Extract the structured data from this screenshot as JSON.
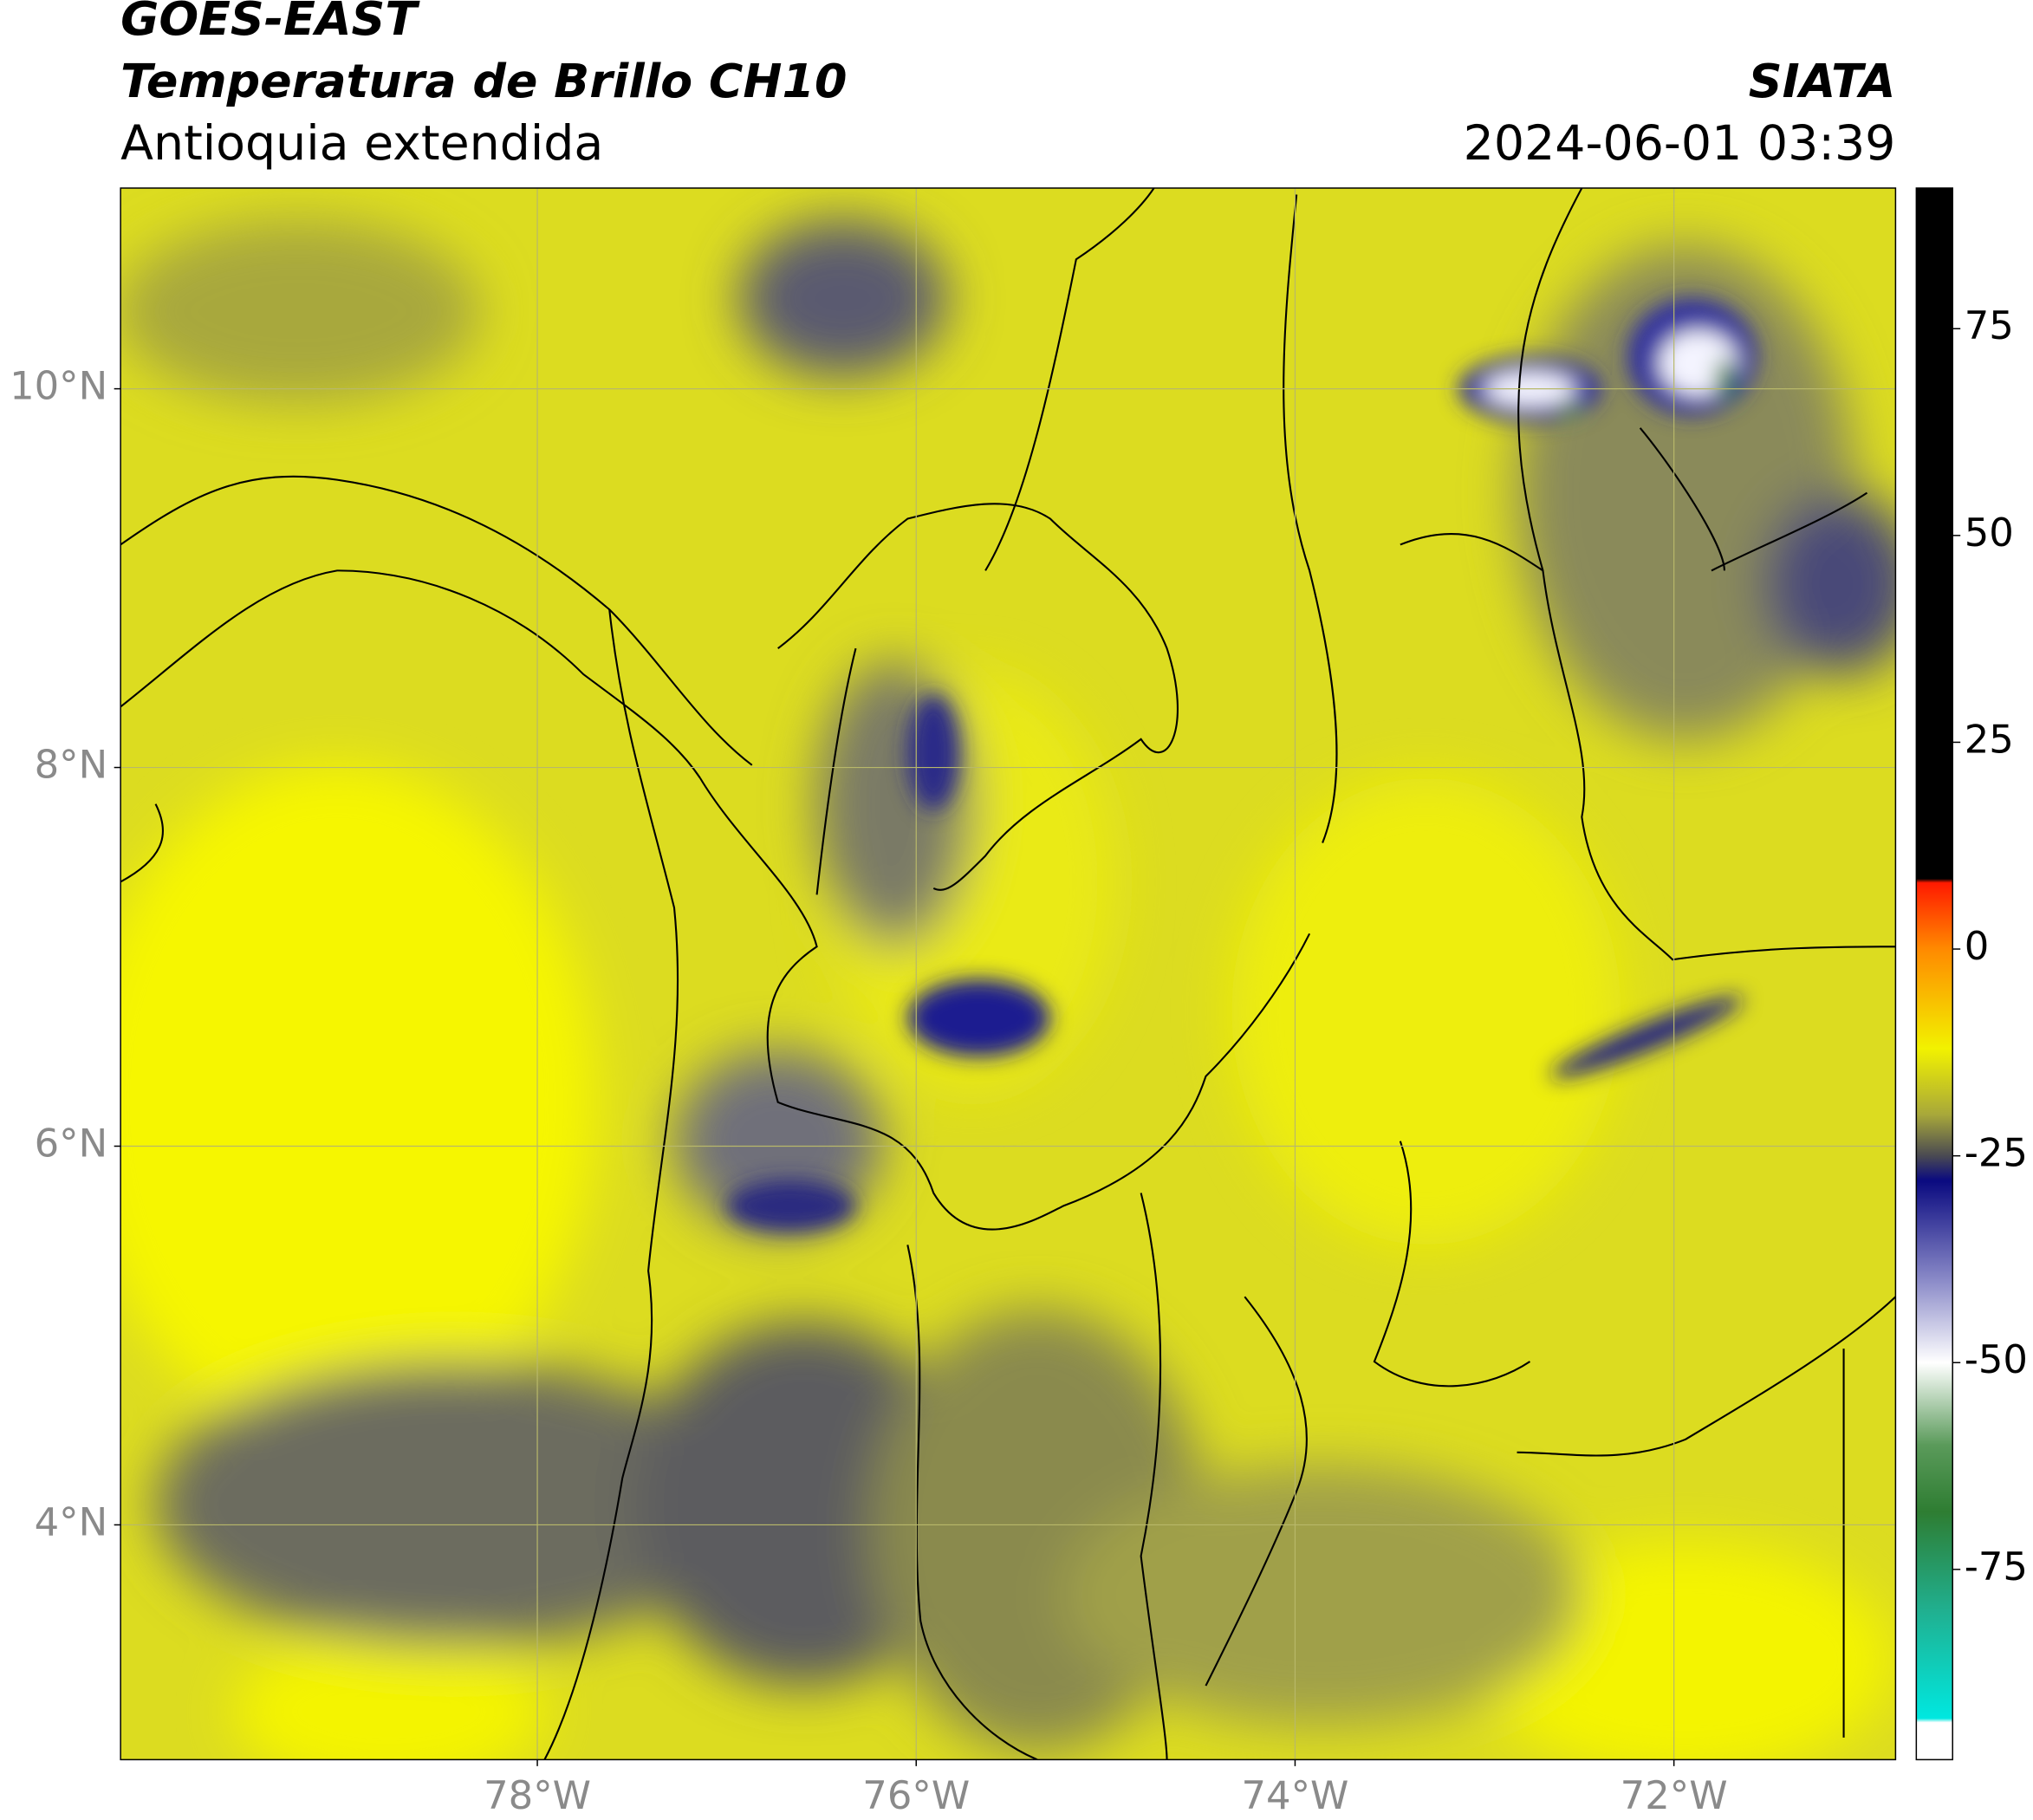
{
  "chart_data": {
    "type": "map",
    "title": "GOES-EAST",
    "subtitle": "Temperatura de Brillo CH10",
    "region": "Antioquia extendida",
    "source": "SIATA",
    "datetime": "2024-06-01 03:39",
    "xlim": [
      -80.2,
      -70.83
    ],
    "ylim": [
      2.76,
      11.06
    ],
    "xticks": [
      {
        "value": -78,
        "label": "78°W"
      },
      {
        "value": -76,
        "label": "76°W"
      },
      {
        "value": -74,
        "label": "74°W"
      },
      {
        "value": -72,
        "label": "72°W"
      }
    ],
    "yticks": [
      {
        "value": 4,
        "label": "4°N"
      },
      {
        "value": 6,
        "label": "6°N"
      },
      {
        "value": 8,
        "label": "8°N"
      },
      {
        "value": 10,
        "label": "10°N"
      }
    ],
    "grid": true,
    "colorbar": {
      "lim": [
        -98,
        92
      ],
      "ticks": [
        75,
        50,
        25,
        0,
        -25,
        -50,
        -75
      ],
      "stops": [
        {
          "value": 92,
          "color": "#000000"
        },
        {
          "value": 8.5,
          "color": "#000000"
        },
        {
          "value": 8,
          "color": "#ff1a00"
        },
        {
          "value": 0,
          "color": "#ff8a00"
        },
        {
          "value": -12,
          "color": "#f2f200"
        },
        {
          "value": -20,
          "color": "#a8a83a"
        },
        {
          "value": -25,
          "color": "#4a4a52"
        },
        {
          "value": -28,
          "color": "#0a0a80"
        },
        {
          "value": -40,
          "color": "#8a8ac8"
        },
        {
          "value": -50,
          "color": "#ffffff"
        },
        {
          "value": -60,
          "color": "#5a9a5a"
        },
        {
          "value": -68,
          "color": "#2e7d32"
        },
        {
          "value": -80,
          "color": "#20b090"
        },
        {
          "value": -93,
          "color": "#00e8e0"
        },
        {
          "value": -93.5,
          "color": "#ffffff"
        },
        {
          "value": -98,
          "color": "#ffffff"
        }
      ]
    }
  }
}
